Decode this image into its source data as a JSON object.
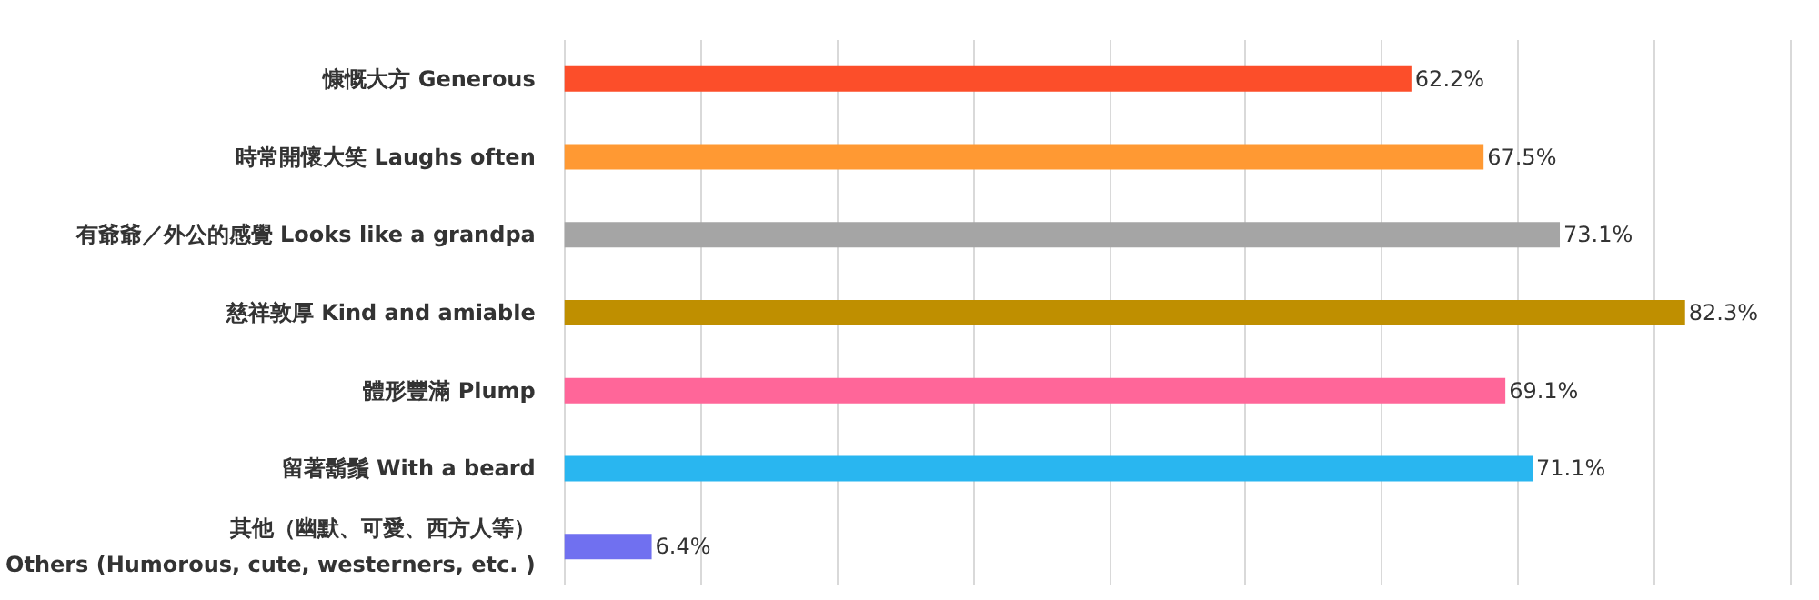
{
  "chart_data": {
    "type": "bar",
    "orientation": "horizontal",
    "categories": [
      "慷慨大方 Generous",
      "時常開懷大笑 Laughs often",
      "有爺爺／外公的感覺 Looks like a grandpa",
      "慈祥敦厚 Kind and amiable",
      "體形豐滿 Plump",
      "留著鬍鬚 With a beard",
      "其他（幽默、可愛、西方人等）\nOthers (Humorous, cute, westerners, etc. )"
    ],
    "values": [
      62.2,
      67.5,
      73.1,
      82.3,
      69.1,
      71.1,
      6.4
    ],
    "value_labels": [
      "62.2%",
      "67.5%",
      "73.1%",
      "82.3%",
      "69.1%",
      "71.1%",
      "6.4%"
    ],
    "colors": [
      "#fc4e2a",
      "#ff9933",
      "#a5a5a5",
      "#bf8f00",
      "#ff6699",
      "#29b6f0",
      "#7070f0"
    ],
    "xlim": [
      0,
      90
    ],
    "xticks": [
      {
        "value": 0,
        "label": null
      },
      {
        "value": 10,
        "label": null
      },
      {
        "value": 20,
        "label": null
      },
      {
        "value": 30,
        "label": null
      },
      {
        "value": 40,
        "label": null
      },
      {
        "value": 50,
        "label": null
      },
      {
        "value": 60,
        "label": null
      },
      {
        "value": 70,
        "label": null
      },
      {
        "value": 80,
        "label": null
      },
      {
        "value": 90,
        "label": null
      }
    ],
    "grid": "x",
    "tick_labels": "y"
  }
}
